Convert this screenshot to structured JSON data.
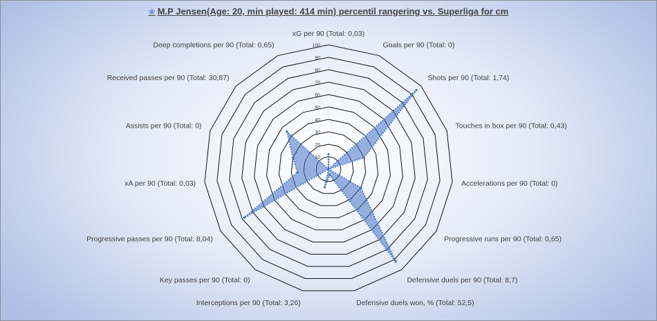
{
  "title": "M.P Jensen(Age: 20, min played: 414 min) percentil rangering vs. Superliga for cm",
  "chart_data": {
    "type": "radar",
    "title": "M.P Jensen(Age: 20, min played: 414 min) percentil rangering vs. Superliga for cm",
    "rlim": [
      0,
      100
    ],
    "ticks": [
      "10",
      "20",
      "30",
      "40",
      "50",
      "60",
      "70",
      "80",
      "90",
      "100"
    ],
    "categories": [
      "xG per 90 (Total: 0,03)",
      "Goals per 90 (Total: 0)",
      "Shots per 90 (Total: 1,74)",
      "Touches in box per 90 (Total: 0,43)",
      "Accelerations per 90 (Total: 0)",
      "Progressive runs per 90 (Total: 0,65)",
      "Defensive duels per 90 (Total: 8,7)",
      "Defensive duels won, % (Total: 52,5)",
      "Interceptions per 90 (Total: 3,26)",
      "Key passes per 90 (Total: 0)",
      "Progressive passes per 90 (Total: 8,04)",
      "xA per 90 (Total: 0,03)",
      "Assists per 90 (Total: 0)",
      "Received passes per 90 (Total: 30,87)",
      "Deep completions per 90 (Total: 0,65)"
    ],
    "values": [
      12,
      0,
      95,
      30,
      0,
      30,
      92,
      5,
      15,
      0,
      78,
      25,
      30,
      45,
      0
    ],
    "grid": true,
    "series_color": "#4472c4"
  }
}
